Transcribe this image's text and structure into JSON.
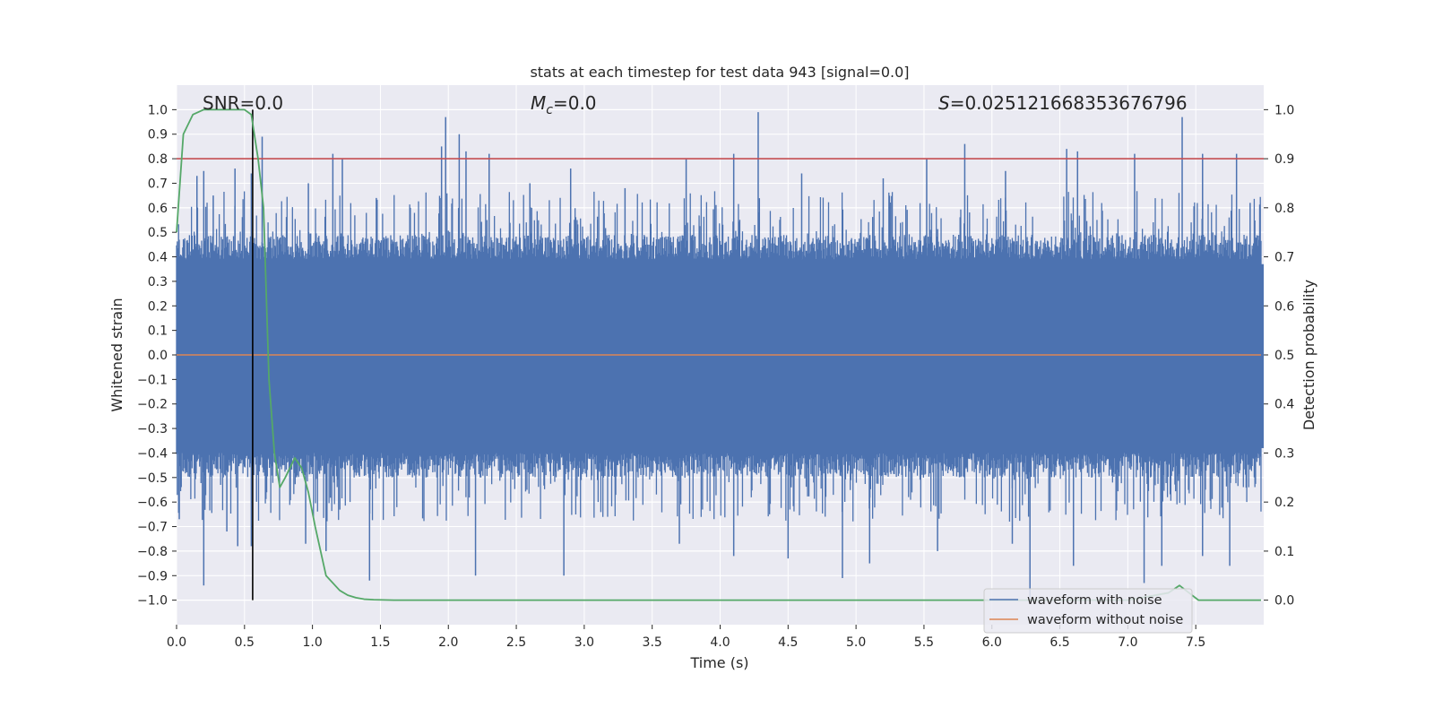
{
  "colors": {
    "background": "#eaeaf2",
    "grid": "#ffffff",
    "noisy": "#4c72b0",
    "clean": "#dd8452",
    "probability": "#55a868",
    "threshold": "#c44e52",
    "marker": "#000000",
    "text": "#262626"
  },
  "chart_data": {
    "type": "line",
    "title": "stats at each timestep for test data 943 [signal=0.0]",
    "xlabel": "Time (s)",
    "ylabel": "Whitened strain",
    "y2label": "Detection probability",
    "xlim": [
      0.0,
      8.0
    ],
    "ylim": [
      -1.1,
      1.1
    ],
    "y2lim": [
      -0.05,
      1.05
    ],
    "x_ticks": [
      "0.0",
      "0.5",
      "1.0",
      "1.5",
      "2.0",
      "2.5",
      "3.0",
      "3.5",
      "4.0",
      "4.5",
      "5.0",
      "5.5",
      "6.0",
      "6.5",
      "7.0",
      "7.5"
    ],
    "y_ticks": [
      "1.0",
      "0.9",
      "0.8",
      "0.7",
      "0.6",
      "0.5",
      "0.4",
      "0.3",
      "0.2",
      "0.1",
      "0.0",
      "−0.1",
      "−0.2",
      "−0.3",
      "−0.4",
      "−0.5",
      "−0.6",
      "−0.7",
      "−0.8",
      "−0.9",
      "−1.0"
    ],
    "y2_ticks": [
      "1.0",
      "0.9",
      "0.8",
      "0.7",
      "0.6",
      "0.5",
      "0.4",
      "0.3",
      "0.2",
      "0.1",
      "0.0"
    ],
    "grid": true,
    "legend_position": "bottom-right",
    "annotations": {
      "snr": "SNR=0.0",
      "mc_symbol": "M",
      "mc_sub": "c",
      "mc_value": "=0.0",
      "s_symbol": "S",
      "s_value": "=0.025121668353676796"
    },
    "threshold": 0.9,
    "marker_x": 0.56,
    "series": [
      {
        "name": "waveform with noise",
        "axis": "left",
        "kind": "noise-envelope",
        "dense_band": [
          -0.4,
          0.39
        ],
        "upper_spikes": [
          [
            0.15,
            0.73
          ],
          [
            0.2,
            0.75
          ],
          [
            0.27,
            0.65
          ],
          [
            0.43,
            0.76
          ],
          [
            0.55,
            0.74
          ],
          [
            0.63,
            0.89
          ],
          [
            0.97,
            0.7
          ],
          [
            1.15,
            0.82
          ],
          [
            1.22,
            0.8
          ],
          [
            1.47,
            0.64
          ],
          [
            1.95,
            0.85
          ],
          [
            1.98,
            0.97
          ],
          [
            2.08,
            0.9
          ],
          [
            2.13,
            0.83
          ],
          [
            2.3,
            0.82
          ],
          [
            2.6,
            0.7
          ],
          [
            2.9,
            0.76
          ],
          [
            3.3,
            0.68
          ],
          [
            3.75,
            0.8
          ],
          [
            4.1,
            0.82
          ],
          [
            4.28,
            0.99
          ],
          [
            4.6,
            0.74
          ],
          [
            5.2,
            0.72
          ],
          [
            5.52,
            0.8
          ],
          [
            5.8,
            0.86
          ],
          [
            6.1,
            0.75
          ],
          [
            6.55,
            0.84
          ],
          [
            6.63,
            0.83
          ],
          [
            7.05,
            0.82
          ],
          [
            7.4,
            0.97
          ],
          [
            7.55,
            0.82
          ],
          [
            7.8,
            0.82
          ],
          [
            7.9,
            0.62
          ]
        ],
        "lower_spikes": [
          [
            0.02,
            -0.67
          ],
          [
            0.2,
            -0.94
          ],
          [
            0.37,
            -0.72
          ],
          [
            0.45,
            -0.78
          ],
          [
            0.55,
            -0.78
          ],
          [
            0.95,
            -0.77
          ],
          [
            1.1,
            -0.8
          ],
          [
            1.42,
            -0.92
          ],
          [
            2.2,
            -0.9
          ],
          [
            2.85,
            -0.9
          ],
          [
            3.7,
            -0.77
          ],
          [
            4.1,
            -0.82
          ],
          [
            4.5,
            -0.83
          ],
          [
            4.9,
            -0.91
          ],
          [
            5.1,
            -0.85
          ],
          [
            5.6,
            -0.8
          ],
          [
            6.15,
            -0.77
          ],
          [
            6.28,
            -0.99
          ],
          [
            6.6,
            -0.86
          ],
          [
            7.12,
            -0.93
          ],
          [
            7.25,
            -0.86
          ],
          [
            7.55,
            -0.82
          ],
          [
            7.75,
            -0.86
          ]
        ]
      },
      {
        "name": "waveform without noise",
        "axis": "left",
        "x": [
          0.0,
          7.98
        ],
        "y": [
          0.0,
          0.0
        ]
      },
      {
        "name": "",
        "axis": "right",
        "x": [
          0.0,
          0.05,
          0.12,
          0.2,
          0.3,
          0.4,
          0.5,
          0.55,
          0.6,
          0.64,
          0.68,
          0.72,
          0.76,
          0.8,
          0.87,
          0.92,
          0.97,
          1.02,
          1.1,
          1.2,
          1.26,
          1.32,
          1.38,
          1.45,
          1.6,
          2.0,
          3.0,
          4.0,
          5.0,
          6.0,
          7.0,
          7.3,
          7.38,
          7.45,
          7.52,
          7.98
        ],
        "y": [
          0.75,
          0.95,
          0.99,
          1.0,
          1.0,
          1.0,
          1.0,
          0.99,
          0.9,
          0.8,
          0.45,
          0.3,
          0.23,
          0.25,
          0.29,
          0.27,
          0.22,
          0.15,
          0.05,
          0.02,
          0.01,
          0.005,
          0.002,
          0.001,
          0.0,
          0.0,
          0.0,
          0.0,
          0.0,
          0.0,
          0.0,
          0.015,
          0.03,
          0.015,
          0.0,
          0.0
        ]
      }
    ]
  }
}
